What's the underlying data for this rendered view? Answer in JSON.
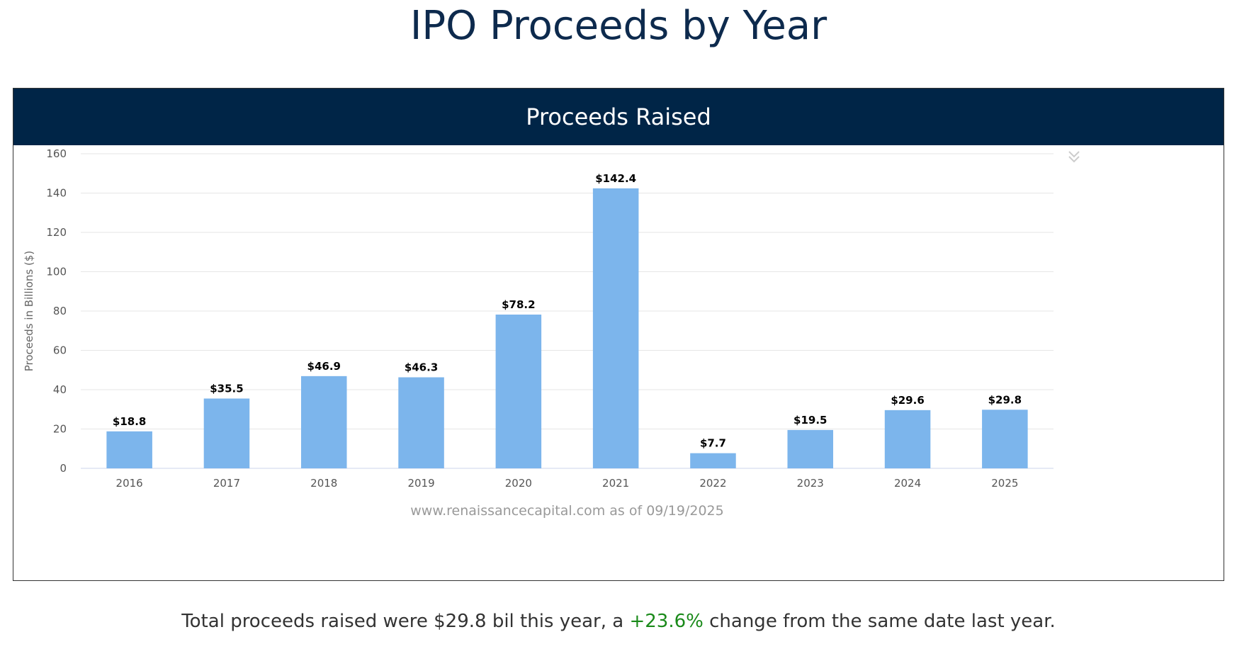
{
  "page": {
    "title": "IPO Proceeds by Year"
  },
  "chart_panel": {
    "header": "Proceeds Raised",
    "credits": "www.renaissancecapital.com as of 09/19/2025",
    "menu_icon": "double-chevron-down-icon"
  },
  "summary": {
    "prefix": "Total proceeds raised were $29.8 bil this year, a ",
    "change": "+23.6%",
    "suffix": " change from the same date last year."
  },
  "colors": {
    "bar": "#7cb5ec",
    "header_bg": "#002547",
    "positive_change": "#1a8a1a"
  },
  "chart_data": {
    "type": "bar",
    "title": "",
    "xlabel": "",
    "ylabel": "Proceeds in Billions ($)",
    "ylim": [
      0,
      160
    ],
    "yticks": [
      0,
      20,
      40,
      60,
      80,
      100,
      120,
      140,
      160
    ],
    "grid": true,
    "legend": "none",
    "categories": [
      "2016",
      "2017",
      "2018",
      "2019",
      "2020",
      "2021",
      "2022",
      "2023",
      "2024",
      "2025"
    ],
    "values": [
      18.8,
      35.5,
      46.9,
      46.3,
      78.2,
      142.4,
      7.7,
      19.5,
      29.6,
      29.8
    ],
    "data_labels": [
      "$18.8",
      "$35.5",
      "$46.9",
      "$46.3",
      "$78.2",
      "$142.4",
      "$7.7",
      "$19.5",
      "$29.6",
      "$29.8"
    ]
  }
}
